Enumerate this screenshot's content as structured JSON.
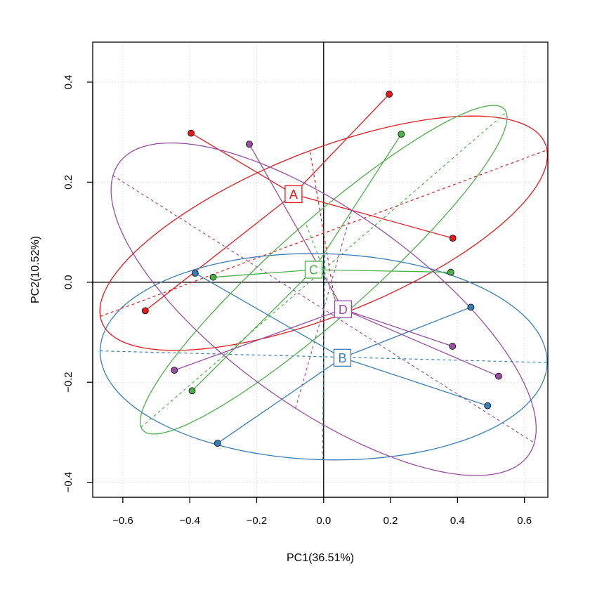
{
  "chart_data": {
    "type": "scatter",
    "title": "",
    "xlabel": "PC1(36.51%)",
    "ylabel": "PC2(10.52%)",
    "xlim": [
      -0.69,
      0.67
    ],
    "ylim": [
      -0.43,
      0.48
    ],
    "xticks": [
      -0.6,
      -0.4,
      -0.2,
      0.0,
      0.2,
      0.4,
      0.6
    ],
    "yticks": [
      -0.4,
      -0.2,
      0.0,
      0.2,
      0.4
    ],
    "xtick_labels": [
      "−0.6",
      "−0.4",
      "−0.2",
      "0.0",
      "0.2",
      "0.4",
      "0.6"
    ],
    "ytick_labels": [
      "−0.4",
      "−0.2",
      "0.0",
      "0.2",
      "0.4"
    ],
    "grid": true,
    "legend": "none",
    "reference_lines": {
      "x": 0,
      "y": 0
    },
    "series": [
      {
        "name": "A",
        "color": "#e41a1c",
        "centroid": [
          -0.09,
          0.176
        ],
        "points": [
          [
            0.196,
            0.376
          ],
          [
            -0.396,
            0.298
          ],
          [
            0.386,
            0.088
          ],
          [
            -0.533,
            -0.057
          ]
        ],
        "ellipse": {
          "center": [
            -0.0,
            0.098
          ],
          "semi_major": 0.688,
          "semi_minor": 0.17,
          "angle_deg": 14
        }
      },
      {
        "name": "B",
        "color": "#377eb8",
        "centroid": [
          0.056,
          -0.151
        ],
        "points": [
          [
            0.44,
            -0.05
          ],
          [
            -0.384,
            0.018
          ],
          [
            0.49,
            -0.247
          ],
          [
            -0.317,
            -0.322
          ]
        ],
        "ellipse": {
          "center": [
            0.0,
            -0.149
          ],
          "semi_major": 0.668,
          "semi_minor": 0.206,
          "angle_deg": -1
        }
      },
      {
        "name": "C",
        "color": "#4daf4a",
        "centroid": [
          -0.03,
          0.025
        ],
        "points": [
          [
            0.232,
            0.296
          ],
          [
            -0.33,
            0.01
          ],
          [
            0.38,
            0.02
          ],
          [
            -0.393,
            -0.217
          ]
        ],
        "ellipse": {
          "center": [
            0.0,
            0.025
          ],
          "semi_major": 0.63,
          "semi_minor": 0.108,
          "angle_deg": 30
        }
      },
      {
        "name": "D",
        "color": "#984ea3",
        "centroid": [
          0.058,
          -0.054
        ],
        "points": [
          [
            -0.222,
            0.276
          ],
          [
            0.385,
            -0.128
          ],
          [
            -0.446,
            -0.176
          ],
          [
            0.523,
            -0.188
          ]
        ],
        "ellipse": {
          "center": [
            0.0,
            -0.054
          ],
          "semi_major": 0.684,
          "semi_minor": 0.215,
          "angle_deg": -23
        }
      }
    ]
  }
}
